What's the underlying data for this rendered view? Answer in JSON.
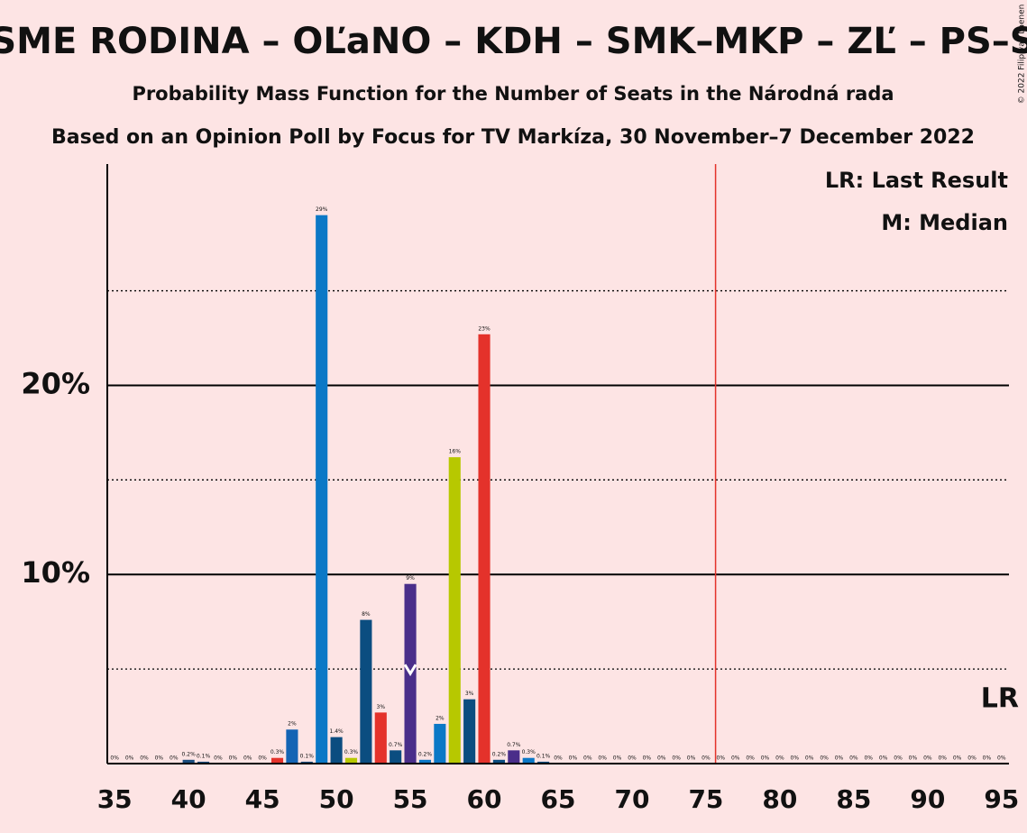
{
  "chart_data": {
    "type": "bar",
    "title": "SME RODINA – OĽaNO – KDH – SMK–MKP – ZĽ – PS–S",
    "subtitle": "Probability Mass Function for the Number of Seats in the Národná rada",
    "subtitle2": "Based on an Opinion Poll by Focus for TV Markíza, 30 November–7 December 2022",
    "copyright": "© 2022 Filip van Laenen",
    "legend": [
      "LR: Last Result",
      "M: Median"
    ],
    "last_result": 76,
    "last_result_label": "LR",
    "median": 55,
    "x": [
      35,
      36,
      37,
      38,
      39,
      40,
      41,
      42,
      43,
      44,
      45,
      46,
      47,
      48,
      49,
      50,
      51,
      52,
      53,
      54,
      55,
      56,
      57,
      58,
      59,
      60,
      61,
      62,
      63,
      64,
      65,
      66,
      67,
      68,
      69,
      70,
      71,
      72,
      73,
      74,
      75,
      76,
      77,
      78,
      79,
      80,
      81,
      82,
      83,
      84,
      85,
      86,
      87,
      88,
      89,
      90,
      91,
      92,
      93,
      94,
      95
    ],
    "values": [
      0,
      0,
      0,
      0,
      0,
      0.2,
      0.1,
      0,
      0,
      0,
      0,
      0.3,
      1.8,
      0.1,
      29,
      1.4,
      0.3,
      7.6,
      2.7,
      0.7,
      9.5,
      0.2,
      2.1,
      16.2,
      3.4,
      22.7,
      0.2,
      0.7,
      0.3,
      0.1,
      0,
      0,
      0,
      0,
      0,
      0,
      0,
      0,
      0,
      0,
      0,
      0,
      0,
      0,
      0,
      0,
      0,
      0,
      0,
      0,
      0,
      0,
      0,
      0,
      0,
      0,
      0,
      0,
      0,
      0,
      0
    ],
    "value_labels": [
      "0%",
      "0%",
      "0%",
      "0%",
      "0%",
      "0.2%",
      "0.1%",
      "0%",
      "0%",
      "0%",
      "0%",
      "0.3%",
      "2%",
      "0.1%",
      "29%",
      "1.4%",
      "0.3%",
      "8%",
      "3%",
      "0.7%",
      "9%",
      "0.2%",
      "2%",
      "16%",
      "3%",
      "23%",
      "0.2%",
      "0.7%",
      "0.3%",
      "0.1%",
      "0%",
      "0%",
      "0%",
      "0%",
      "0%",
      "0%",
      "0%",
      "0%",
      "0%",
      "0%",
      "0%",
      "0%",
      "0%",
      "0%",
      "0%",
      "0%",
      "0%",
      "0%",
      "0%",
      "0%",
      "0%",
      "0%",
      "0%",
      "0%",
      "0%",
      "0%",
      "0%",
      "0%",
      "0%",
      "0%",
      "0%"
    ],
    "colors": [
      "#1b4d7e",
      "#1b4d7e",
      "#1b4d7e",
      "#1b4d7e",
      "#1b4d7e",
      "#1b4d7e",
      "#1b4d7e",
      "#1b4d7e",
      "#1b4d7e",
      "#1b4d7e",
      "#1b4d7e",
      "#e4322b",
      "#1464b4",
      "#1b4d7e",
      "#0b78c6",
      "#0b4d80",
      "#b7c800",
      "#0b4d80",
      "#e4322b",
      "#0b4d80",
      "#4a2e8a",
      "#0b78c6",
      "#0b78c6",
      "#b7c800",
      "#0b4d80",
      "#e4322b",
      "#0b4d80",
      "#4a2e8a",
      "#0b78c6",
      "#0b4d80",
      "#1b4d7e",
      "#1b4d7e",
      "#1b4d7e",
      "#1b4d7e",
      "#1b4d7e",
      "#1b4d7e",
      "#1b4d7e",
      "#1b4d7e",
      "#1b4d7e",
      "#1b4d7e",
      "#1b4d7e",
      "#1b4d7e",
      "#1b4d7e",
      "#1b4d7e",
      "#1b4d7e",
      "#1b4d7e",
      "#1b4d7e",
      "#1b4d7e",
      "#1b4d7e",
      "#1b4d7e",
      "#1b4d7e",
      "#1b4d7e",
      "#1b4d7e",
      "#1b4d7e",
      "#1b4d7e",
      "#1b4d7e",
      "#1b4d7e",
      "#1b4d7e",
      "#1b4d7e",
      "#1b4d7e",
      "#1b4d7e"
    ],
    "xlim": [
      34.5,
      95.5
    ],
    "xticks": [
      35,
      40,
      45,
      50,
      55,
      60,
      65,
      70,
      75,
      80,
      85,
      90,
      95
    ],
    "ylim": [
      0,
      31.7
    ],
    "yticks": [
      {
        "value": 10,
        "label": "10%"
      },
      {
        "value": 20,
        "label": "20%"
      }
    ],
    "minor_yticks": [
      5,
      15,
      25
    ],
    "grid": true
  }
}
